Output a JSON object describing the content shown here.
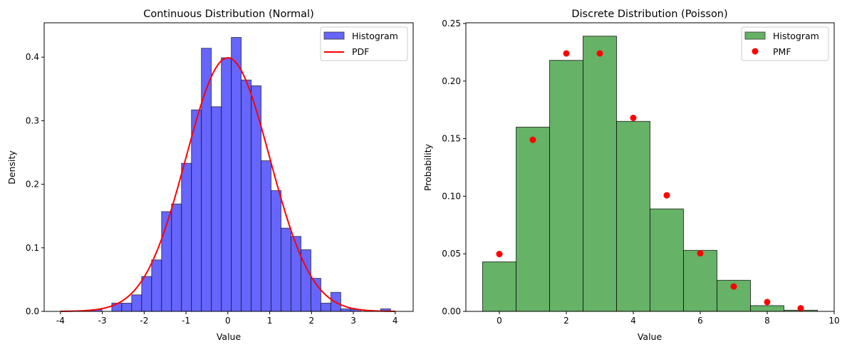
{
  "chart_data": [
    {
      "type": "bar",
      "title": "Continuous Distribution (Normal)",
      "xlabel": "Value",
      "ylabel": "Density",
      "xlim": [
        -4.39,
        4.43
      ],
      "ylim": [
        0,
        0.454
      ],
      "xticks": [
        "-4",
        "-3",
        "-2",
        "-1",
        "0",
        "1",
        "2",
        "3",
        "4"
      ],
      "xtick_values": [
        -4,
        -3,
        -2,
        -1,
        0,
        1,
        2,
        3,
        4
      ],
      "yticks": [
        "0.0",
        "0.1",
        "0.2",
        "0.3",
        "0.4"
      ],
      "ytick_values": [
        0,
        0.1,
        0.2,
        0.3,
        0.4
      ],
      "grid": false,
      "legend_position": "top-right",
      "histogram": {
        "name": "Histogram",
        "color": "#6666ff",
        "bin_start": -3.25,
        "bin_width": 0.238,
        "values": [
          0.003,
          0,
          0.013,
          0.013,
          0.026,
          0.055,
          0.081,
          0.157,
          0.169,
          0.233,
          0.317,
          0.414,
          0.322,
          0.399,
          0.431,
          0.364,
          0.355,
          0.237,
          0.19,
          0.131,
          0.118,
          0.097,
          0.052,
          0.013,
          0.03,
          0.004,
          0.003,
          0,
          0,
          0.004
        ]
      },
      "line": {
        "name": "PDF",
        "color": "#ff0000",
        "function": "normal pdf, mean 0, std 1",
        "x_range": [
          -4,
          4
        ]
      }
    },
    {
      "type": "bar",
      "title": "Discrete Distribution (Poisson)",
      "xlabel": "Value",
      "ylabel": "Probability",
      "xlim": [
        -1,
        10
      ],
      "ylim": [
        0,
        0.2506
      ],
      "xticks": [
        "0",
        "2",
        "4",
        "6",
        "8",
        "10"
      ],
      "xtick_values": [
        0,
        2,
        4,
        6,
        8,
        10
      ],
      "yticks": [
        "0.00",
        "0.05",
        "0.10",
        "0.15",
        "0.20",
        "0.25"
      ],
      "ytick_values": [
        0,
        0.05,
        0.1,
        0.15,
        0.2,
        0.25
      ],
      "grid": false,
      "legend_position": "top-right",
      "histogram": {
        "name": "Histogram",
        "color": "#66b266",
        "categories": [
          0,
          1,
          2,
          3,
          4,
          5,
          6,
          7,
          8,
          9
        ],
        "values": [
          0.043,
          0.16,
          0.218,
          0.239,
          0.165,
          0.089,
          0.053,
          0.027,
          0.005,
          0.001
        ]
      },
      "points": {
        "name": "PMF",
        "color": "#ff0000",
        "x": [
          0,
          1,
          2,
          3,
          4,
          5,
          6,
          7,
          8,
          9
        ],
        "y": [
          0.0498,
          0.149,
          0.224,
          0.224,
          0.168,
          0.1008,
          0.0504,
          0.0216,
          0.0081,
          0.0027
        ]
      }
    }
  ]
}
